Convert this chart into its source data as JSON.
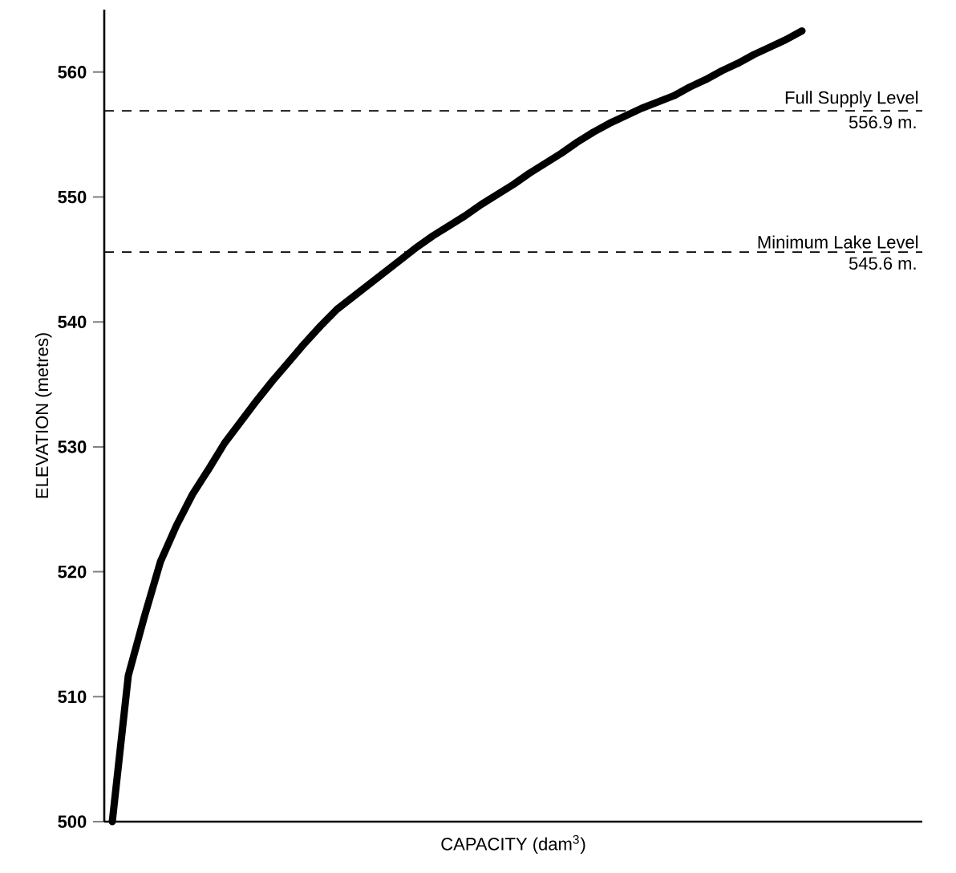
{
  "chart_data": {
    "type": "line",
    "xlabel": "CAPACITY (dam$^{3}$)",
    "ylabel": "ELEVATION  (metres)",
    "categories": [
      null,
      null,
      null,
      null,
      null,
      null,
      null,
      null,
      null,
      null,
      null,
      null,
      null,
      null,
      null,
      null,
      null,
      null,
      null,
      null,
      null,
      null,
      null,
      null,
      null,
      null,
      null,
      null,
      null,
      null,
      null,
      null,
      null,
      null,
      null,
      null,
      null,
      null,
      null,
      null,
      null,
      null,
      null,
      null,
      null,
      null,
      null,
      null,
      null,
      null,
      null
    ],
    "series": [
      {
        "color": "#000000",
        "values": [
          500,
          511.7,
          516.4,
          520.8,
          523.7,
          526.2,
          528.2,
          530.3,
          532.0,
          533.7,
          535.3,
          536.8,
          538.3,
          539.7,
          541.0,
          542.0,
          543.0,
          544.0,
          545.0,
          546.0,
          546.9,
          547.7,
          548.5,
          549.4,
          550.2,
          551.0,
          551.9,
          552.7,
          553.5,
          554.4,
          555.2,
          555.9,
          556.5,
          557.1,
          557.6,
          558.1,
          558.8,
          559.4,
          560.1,
          560.7,
          561.4,
          562.0,
          562.6,
          563.3,
          null,
          null,
          null,
          null,
          null,
          null,
          null
        ]
      }
    ],
    "ylim": [
      500,
      565
    ],
    "yticks": [
      500,
      510,
      520,
      530,
      540,
      550,
      560
    ],
    "ref_lines": [
      {
        "axis": "y",
        "value": 556.9,
        "label": "Full Supply Level",
        "line_style": "dashed"
      },
      {
        "axis": "y",
        "value": 545.6,
        "label": "Minimum Lake Level",
        "line_style": "dashed"
      }
    ],
    "annotations": [
      {
        "text": "556.9 m.",
        "y": 556.9
      },
      {
        "text": "545.6 m.",
        "y": 545.6
      }
    ]
  }
}
